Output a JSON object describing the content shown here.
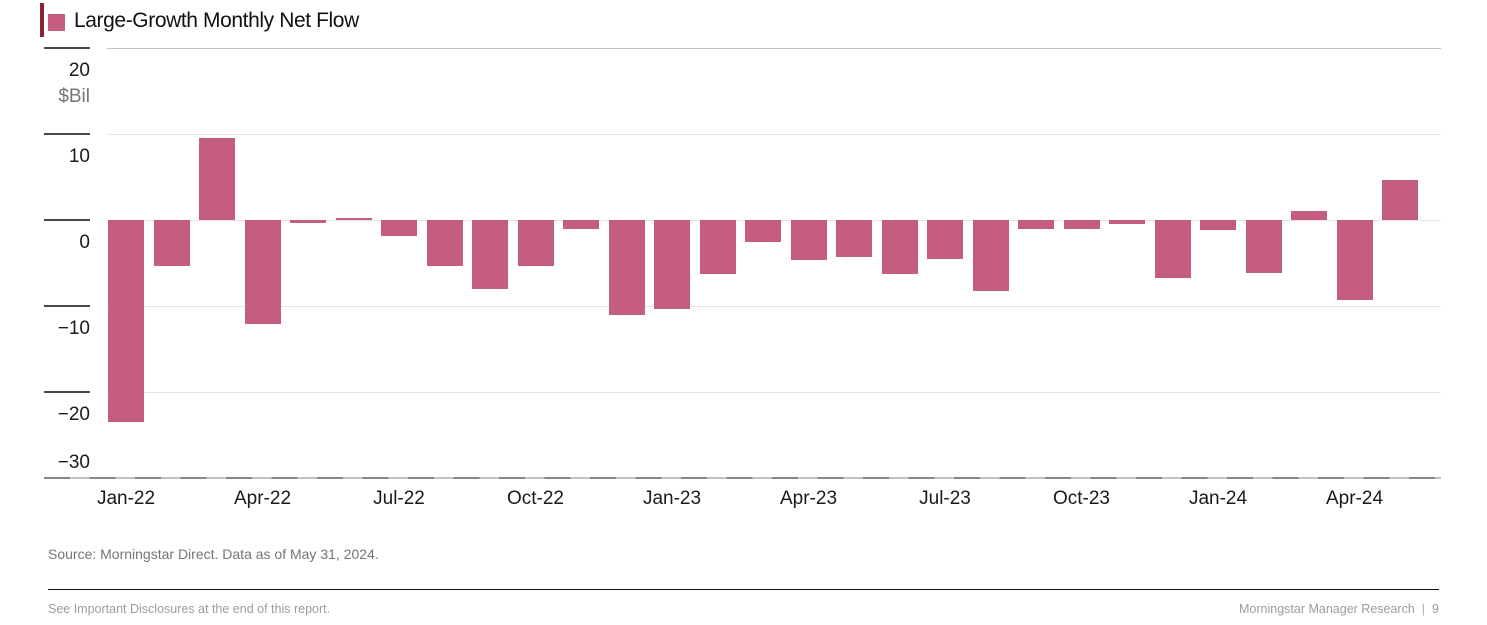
{
  "header": {
    "accent_color": "#8a2332",
    "legend_color": "#c55e7e"
  },
  "chart_data": {
    "type": "bar",
    "title": "Large-Growth Monthly Net Flow",
    "unit_label": "$Bil",
    "bar_color": "#c55e7e",
    "grid": true,
    "legend_position": "top-left",
    "ylim": [
      -30,
      20
    ],
    "ytick_values": [
      20,
      10,
      0,
      -10,
      -20,
      -30
    ],
    "ytick_labels": [
      "20",
      "10",
      "0",
      "−10",
      "−20",
      "−30"
    ],
    "xtick_labels": [
      "Jan-22",
      "Apr-22",
      "Jul-22",
      "Oct-22",
      "Jan-23",
      "Apr-23",
      "Jul-23",
      "Oct-23",
      "Jan-24",
      "Apr-24"
    ],
    "categories": [
      "Jan-22",
      "Feb-22",
      "Mar-22",
      "Apr-22",
      "May-22",
      "Jun-22",
      "Jul-22",
      "Aug-22",
      "Sep-22",
      "Oct-22",
      "Nov-22",
      "Dec-22",
      "Jan-23",
      "Feb-23",
      "Mar-23",
      "Apr-23",
      "May-23",
      "Jun-23",
      "Jul-23",
      "Aug-23",
      "Sep-23",
      "Oct-23",
      "Nov-23",
      "Dec-23",
      "Jan-24",
      "Feb-24",
      "Mar-24",
      "Apr-24",
      "May-24"
    ],
    "values": [
      -23.5,
      -5.3,
      9.5,
      -12.1,
      -0.4,
      0.2,
      -1.9,
      -5.3,
      -8.0,
      -5.3,
      -1.0,
      -11.1,
      -10.3,
      -6.3,
      -2.5,
      -4.7,
      -4.3,
      -6.3,
      -4.5,
      -8.3,
      -1.1,
      -1.0,
      -0.5,
      -6.7,
      -1.2,
      -6.2,
      1.1,
      -9.3,
      4.7
    ]
  },
  "footer": {
    "source_text": "Source: Morningstar Direct. Data as of May 31, 2024.",
    "disclosure_text": "See Important Disclosures at the end of this report.",
    "brand_text": "Morningstar Manager Research",
    "separator": "|",
    "page_number": "9"
  }
}
